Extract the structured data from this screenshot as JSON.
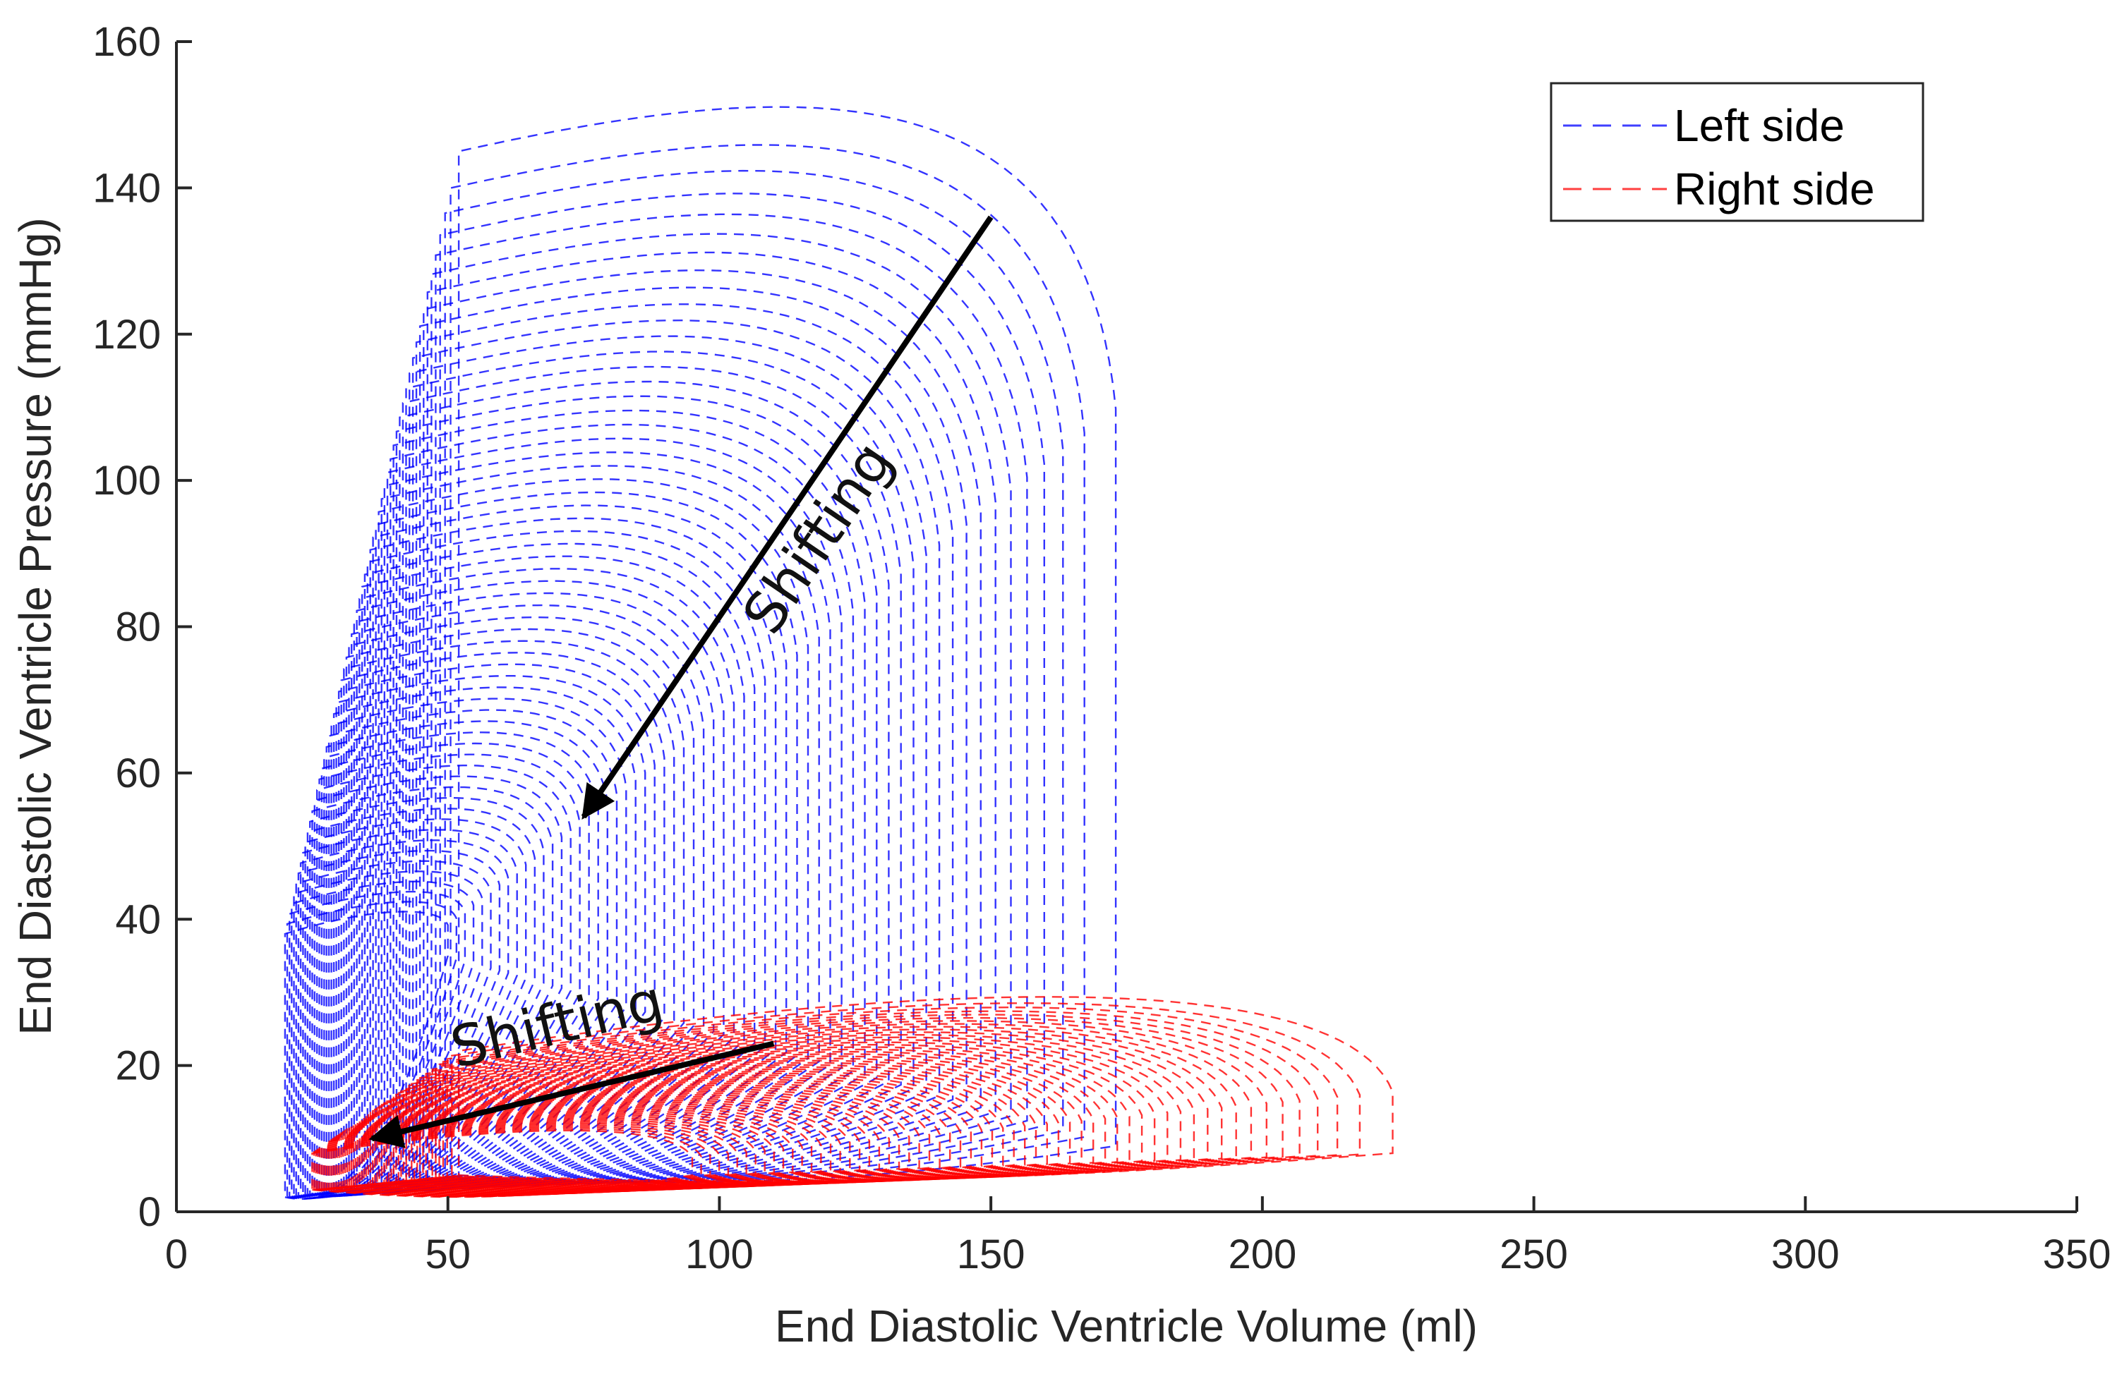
{
  "chart_data": {
    "type": "line",
    "title": "",
    "xlabel": "End Diastolic Ventricle Volume (ml)",
    "ylabel": "End Diastolic Ventricle Pressure (mmHg)",
    "xlim": [
      0,
      350
    ],
    "ylim": [
      0,
      160
    ],
    "xticks": [
      "0",
      "50",
      "100",
      "150",
      "200",
      "250",
      "300",
      "350"
    ],
    "yticks": [
      "0",
      "20",
      "40",
      "60",
      "80",
      "100",
      "120",
      "140",
      "160"
    ],
    "grid": false,
    "legend_position": "top-right",
    "line_style": "dashed",
    "series": [
      {
        "name": "Left side",
        "color": "#0000ff",
        "loop_count": 60,
        "first_loop": {
          "edv": 173,
          "esv": 52,
          "min_pressure": 5,
          "edp": 9,
          "peak_pressure": 153,
          "pressure_at_ejection_end": 145
        },
        "last_loop": {
          "edv": 50,
          "esv": 20,
          "min_pressure": 2,
          "edp": 35,
          "peak_pressure": 41,
          "pressure_at_ejection_end": 38
        }
      },
      {
        "name": "Right side",
        "color": "#ff0000",
        "loop_count": 60,
        "first_loop": {
          "edv": 224,
          "esv": 52,
          "min_pressure": 5,
          "edp": 8,
          "peak_pressure": 32,
          "pressure_at_ejection_end": 22
        },
        "last_loop": {
          "edv": 95,
          "esv": 25,
          "min_pressure": 3,
          "edp": 5,
          "peak_pressure": 12,
          "pressure_at_ejection_end": 8
        }
      }
    ],
    "annotations": [
      {
        "text": "Shifting",
        "arrow_from": [
          150,
          136
        ],
        "arrow_to": [
          75,
          54
        ]
      },
      {
        "text": "Shifting",
        "arrow_from": [
          110,
          23
        ],
        "arrow_to": [
          36,
          10
        ]
      }
    ]
  }
}
